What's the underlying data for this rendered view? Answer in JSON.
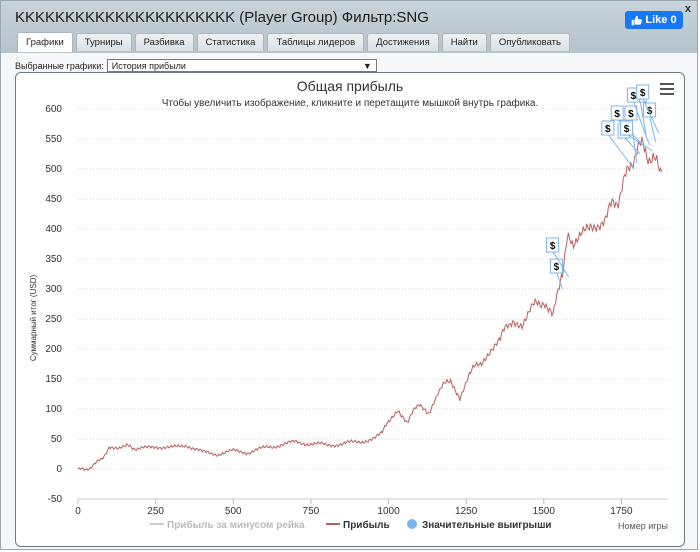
{
  "window": {
    "title": "KKKKKKKKKKKKKKKKKKKKKK (Player Group) Фильтр:SNG",
    "close_label": "x",
    "like_label": "Like 0"
  },
  "tabs": [
    {
      "label": "Графики",
      "active": true
    },
    {
      "label": "Турниры"
    },
    {
      "label": "Разбивка"
    },
    {
      "label": "Статистика"
    },
    {
      "label": "Таблицы лидеров"
    },
    {
      "label": "Достижения"
    },
    {
      "label": "Найти"
    },
    {
      "label": "Опубликовать"
    }
  ],
  "selector": {
    "label": "Выбранные графики:",
    "value": "История прибыли",
    "arrow": "▼"
  },
  "chart_data": {
    "type": "line",
    "title": "Общая прибыль",
    "subtitle": "Чтобы увеличить изображение, кликните и перетащите мышкой внутрь графика.",
    "xlabel": "Номер игры",
    "ylabel": "Суммарный итог (USD)",
    "xlim": [
      0,
      1900
    ],
    "ylim": [
      -50,
      600
    ],
    "x_ticks": [
      0,
      250,
      500,
      750,
      1000,
      1250,
      1500,
      1750
    ],
    "y_ticks": [
      -50,
      0,
      50,
      100,
      150,
      200,
      250,
      300,
      350,
      400,
      450,
      500,
      550,
      600
    ],
    "grid": true,
    "legend_position": "bottom",
    "series": [
      {
        "name": "Прибыль",
        "color": "#b85f5f",
        "x": [
          0,
          20,
          40,
          60,
          80,
          100,
          130,
          160,
          200,
          250,
          300,
          350,
          400,
          450,
          500,
          550,
          600,
          650,
          700,
          750,
          800,
          850,
          900,
          950,
          980,
          1000,
          1030,
          1060,
          1100,
          1130,
          1160,
          1200,
          1230,
          1260,
          1300,
          1330,
          1360,
          1400,
          1430,
          1460,
          1500,
          1530,
          1550,
          1560,
          1575,
          1600,
          1650,
          1700,
          1720,
          1740,
          1760,
          1780,
          1800,
          1820,
          1840,
          1860,
          1880
        ],
        "y": [
          0,
          -2,
          3,
          10,
          20,
          35,
          32,
          38,
          33,
          38,
          35,
          40,
          28,
          25,
          30,
          28,
          35,
          40,
          45,
          42,
          40,
          42,
          45,
          50,
          60,
          80,
          100,
          80,
          110,
          95,
          130,
          150,
          120,
          160,
          180,
          200,
          220,
          250,
          240,
          270,
          280,
          260,
          300,
          320,
          380,
          380,
          400,
          420,
          440,
          450,
          480,
          510,
          530,
          540,
          520,
          510,
          495
        ]
      },
      {
        "name": "Прибыль за минусом рейка",
        "color": "#cccccc",
        "x": [],
        "y": []
      },
      {
        "name": "Значительные выигрыши",
        "color": "#7cb5ec",
        "x": [
          1560,
          1580,
          1790,
          1800,
          1810,
          1820,
          1830,
          1840,
          1850,
          1860,
          1870
        ],
        "y": [
          300,
          320,
          500,
          510,
          525,
          540,
          555,
          540,
          530,
          545,
          560
        ],
        "marker": "$"
      }
    ]
  }
}
